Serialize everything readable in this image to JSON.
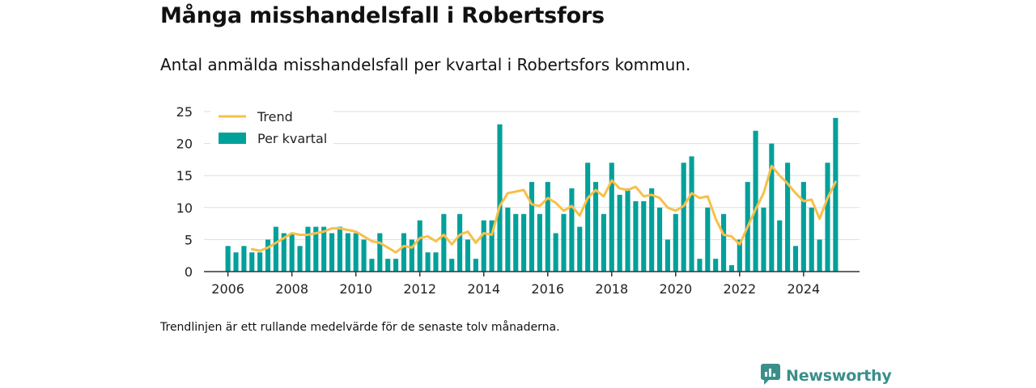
{
  "title": "Många misshandelsfall i Robertsfors",
  "subtitle": "Antal anmälda misshandelsfall per kvartal i Robertsfors kommun.",
  "note": "Trendlinjen är ett rullande medelvärde för de senaste tolv månaderna.",
  "brand": {
    "name": "Newsworthy",
    "icon": "newsworthy-logo-icon"
  },
  "colors": {
    "bars": "#00a19a",
    "trend": "#f7c04a",
    "grid": "#dddddd",
    "axis": "#333333"
  },
  "chart_data": {
    "type": "bar",
    "xlim": [
      2005.25,
      2025.75
    ],
    "ylim": [
      0,
      25
    ],
    "xticks": [
      "2006",
      "2008",
      "2010",
      "2012",
      "2014",
      "2016",
      "2018",
      "2020",
      "2022",
      "2024"
    ],
    "yticks": [
      "0",
      "5",
      "10",
      "15",
      "20",
      "25"
    ],
    "grid": true,
    "legend_position": "top-left",
    "start_quarter": "2006 Q1",
    "series": [
      {
        "name": "Per kvartal",
        "kind": "bar",
        "values": [
          4,
          3,
          4,
          3,
          3,
          5,
          7,
          6,
          6,
          4,
          7,
          7,
          7,
          6,
          7,
          6,
          6,
          5,
          2,
          6,
          2,
          2,
          6,
          5,
          8,
          3,
          3,
          9,
          2,
          9,
          5,
          2,
          8,
          8,
          23,
          10,
          9,
          9,
          14,
          9,
          14,
          6,
          9,
          13,
          7,
          17,
          14,
          9,
          17,
          12,
          13,
          11,
          11,
          13,
          10,
          5,
          9,
          17,
          18,
          2,
          10,
          2,
          9,
          1,
          5,
          14,
          22,
          10,
          20,
          8,
          17,
          4,
          14,
          10,
          5,
          17,
          24
        ]
      },
      {
        "name": "Trend",
        "kind": "line",
        "values": [
          null,
          null,
          null,
          3.5,
          3.25,
          3.75,
          4.5,
          5.25,
          6,
          5.75,
          5.75,
          6,
          6.25,
          6.75,
          6.75,
          6.5,
          6.25,
          5.5,
          4.75,
          4.5,
          3.75,
          3,
          4,
          3.75,
          5.25,
          5.5,
          4.75,
          5.75,
          4.25,
          5.75,
          6.25,
          4.5,
          6,
          5.75,
          10.25,
          12.25,
          12.5,
          12.75,
          10.5,
          10.25,
          11.5,
          10.75,
          9.5,
          10.25,
          8.75,
          11.5,
          12.75,
          11.75,
          14.25,
          13,
          12.75,
          13.25,
          11.75,
          12,
          11.5,
          10,
          9.5,
          10.25,
          12.25,
          11.5,
          11.75,
          8.25,
          5.75,
          5.5,
          4.25,
          7,
          9.75,
          12.25,
          16.5,
          15,
          13.75,
          12.25,
          11,
          11.25,
          8.25,
          11.5,
          14
        ]
      }
    ]
  }
}
